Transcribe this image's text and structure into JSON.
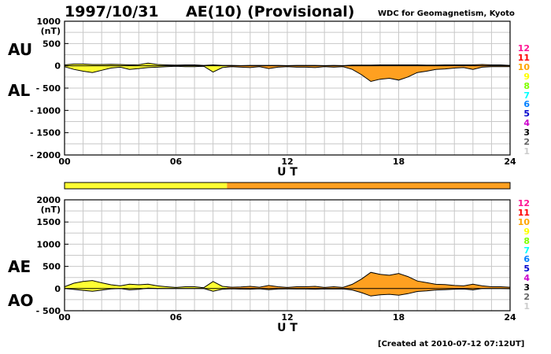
{
  "header": {
    "date": "1997/10/31",
    "title": "AE(10) (Provisional)",
    "source": "WDC for Geomagnetism, Kyoto",
    "created": "[Created at 2010-07-12 07:12UT]"
  },
  "labels": {
    "au": "AU",
    "al": "AL",
    "ae": "AE",
    "ao": "AO"
  },
  "levels": {
    "items": [
      {
        "text": "12",
        "color": "#ff1493"
      },
      {
        "text": "11",
        "color": "#ff0000"
      },
      {
        "text": "10",
        "color": "#ffa500"
      },
      {
        "text": "9",
        "color": "#ffff00"
      },
      {
        "text": "8",
        "color": "#7fff00"
      },
      {
        "text": "7",
        "color": "#00ffff"
      },
      {
        "text": "6",
        "color": "#0080ff"
      },
      {
        "text": "5",
        "color": "#0000cd"
      },
      {
        "text": "4",
        "color": "#cc00cc"
      },
      {
        "text": "3",
        "color": "#000000"
      },
      {
        "text": "2",
        "color": "#666666"
      },
      {
        "text": "1",
        "color": "#cccccc"
      }
    ]
  },
  "activity_bar": {
    "segments": [
      {
        "start": 0,
        "end": 8.75,
        "color": "#ffff33"
      },
      {
        "start": 8.75,
        "end": 24,
        "color": "#ffa020"
      }
    ]
  },
  "chart_data": [
    {
      "type": "area",
      "xlabel": "U T",
      "ylabel": "(nT)",
      "xlim": [
        0,
        24
      ],
      "ylim": [
        -2000,
        1000
      ],
      "xticks": [
        0,
        6,
        12,
        18,
        24
      ],
      "xtick_labels": [
        "00",
        "06",
        "12",
        "18",
        "24"
      ],
      "yticks": [
        1000,
        500,
        0,
        -500,
        -1000,
        -1500,
        -2000
      ],
      "ytick_labels": [
        "1000",
        "500",
        "0",
        "- 500",
        "- 1000",
        "- 1500",
        "- 2000"
      ],
      "grid": true,
      "x": [
        0,
        0.5,
        1,
        1.5,
        2,
        2.5,
        3,
        3.5,
        4,
        4.5,
        5,
        5.5,
        6,
        6.5,
        7,
        7.5,
        8,
        8.5,
        9,
        9.5,
        10,
        10.5,
        11,
        11.5,
        12,
        12.5,
        13,
        13.5,
        14,
        14.5,
        15,
        15.5,
        16,
        16.5,
        17,
        17.5,
        18,
        18.5,
        19,
        19.5,
        20,
        20.5,
        21,
        21.5,
        22,
        22.5,
        23,
        23.5,
        24
      ],
      "series": [
        {
          "name": "AU",
          "values": [
            20,
            40,
            40,
            30,
            30,
            35,
            30,
            20,
            25,
            60,
            30,
            20,
            15,
            20,
            20,
            10,
            20,
            10,
            10,
            5,
            10,
            10,
            10,
            10,
            5,
            10,
            10,
            10,
            5,
            10,
            5,
            15,
            15,
            15,
            20,
            20,
            20,
            20,
            20,
            15,
            15,
            20,
            20,
            20,
            20,
            30,
            20,
            20,
            10
          ]
        },
        {
          "name": "AL",
          "values": [
            -20,
            -80,
            -120,
            -150,
            -100,
            -50,
            -30,
            -80,
            -60,
            -40,
            -30,
            -20,
            -10,
            -20,
            -20,
            -10,
            -140,
            -40,
            -20,
            -30,
            -40,
            -20,
            -60,
            -30,
            -20,
            -30,
            -30,
            -40,
            -20,
            -30,
            -20,
            -80,
            -200,
            -350,
            -300,
            -280,
            -320,
            -250,
            -150,
            -120,
            -80,
            -70,
            -50,
            -40,
            -80,
            -30,
            -20,
            -20,
            -20
          ]
        }
      ]
    },
    {
      "type": "area",
      "xlabel": "U T",
      "ylabel": "(nT)",
      "xlim": [
        0,
        24
      ],
      "ylim": [
        -500,
        2000
      ],
      "xticks": [
        0,
        6,
        12,
        18,
        24
      ],
      "xtick_labels": [
        "00",
        "06",
        "12",
        "18",
        "24"
      ],
      "yticks": [
        2000,
        1500,
        1000,
        500,
        0,
        -500
      ],
      "ytick_labels": [
        "2000",
        "1500",
        "1000",
        "500",
        "0",
        "- 500"
      ],
      "grid": true,
      "x": [
        0,
        0.5,
        1,
        1.5,
        2,
        2.5,
        3,
        3.5,
        4,
        4.5,
        5,
        5.5,
        6,
        6.5,
        7,
        7.5,
        8,
        8.5,
        9,
        9.5,
        10,
        10.5,
        11,
        11.5,
        12,
        12.5,
        13,
        13.5,
        14,
        14.5,
        15,
        15.5,
        16,
        16.5,
        17,
        17.5,
        18,
        18.5,
        19,
        19.5,
        20,
        20.5,
        21,
        21.5,
        22,
        22.5,
        23,
        23.5,
        24
      ],
      "series": [
        {
          "name": "AE",
          "values": [
            40,
            120,
            160,
            180,
            130,
            85,
            60,
            100,
            85,
            100,
            60,
            40,
            25,
            40,
            40,
            20,
            160,
            50,
            30,
            35,
            50,
            30,
            70,
            40,
            25,
            40,
            40,
            50,
            25,
            40,
            25,
            95,
            215,
            365,
            320,
            300,
            340,
            270,
            170,
            135,
            95,
            90,
            70,
            60,
            100,
            60,
            40,
            40,
            30
          ]
        },
        {
          "name": "AO",
          "values": [
            0,
            -20,
            -40,
            -60,
            -35,
            -8,
            0,
            -30,
            -18,
            10,
            0,
            0,
            2,
            0,
            0,
            0,
            -60,
            -15,
            -5,
            -12,
            -15,
            -5,
            -25,
            -10,
            -8,
            -10,
            -10,
            -15,
            -8,
            -10,
            -8,
            -32,
            -92,
            -168,
            -140,
            -130,
            -150,
            -115,
            -65,
            -52,
            -32,
            -25,
            -15,
            -10,
            -30,
            0,
            0,
            0,
            -5
          ]
        }
      ]
    }
  ]
}
